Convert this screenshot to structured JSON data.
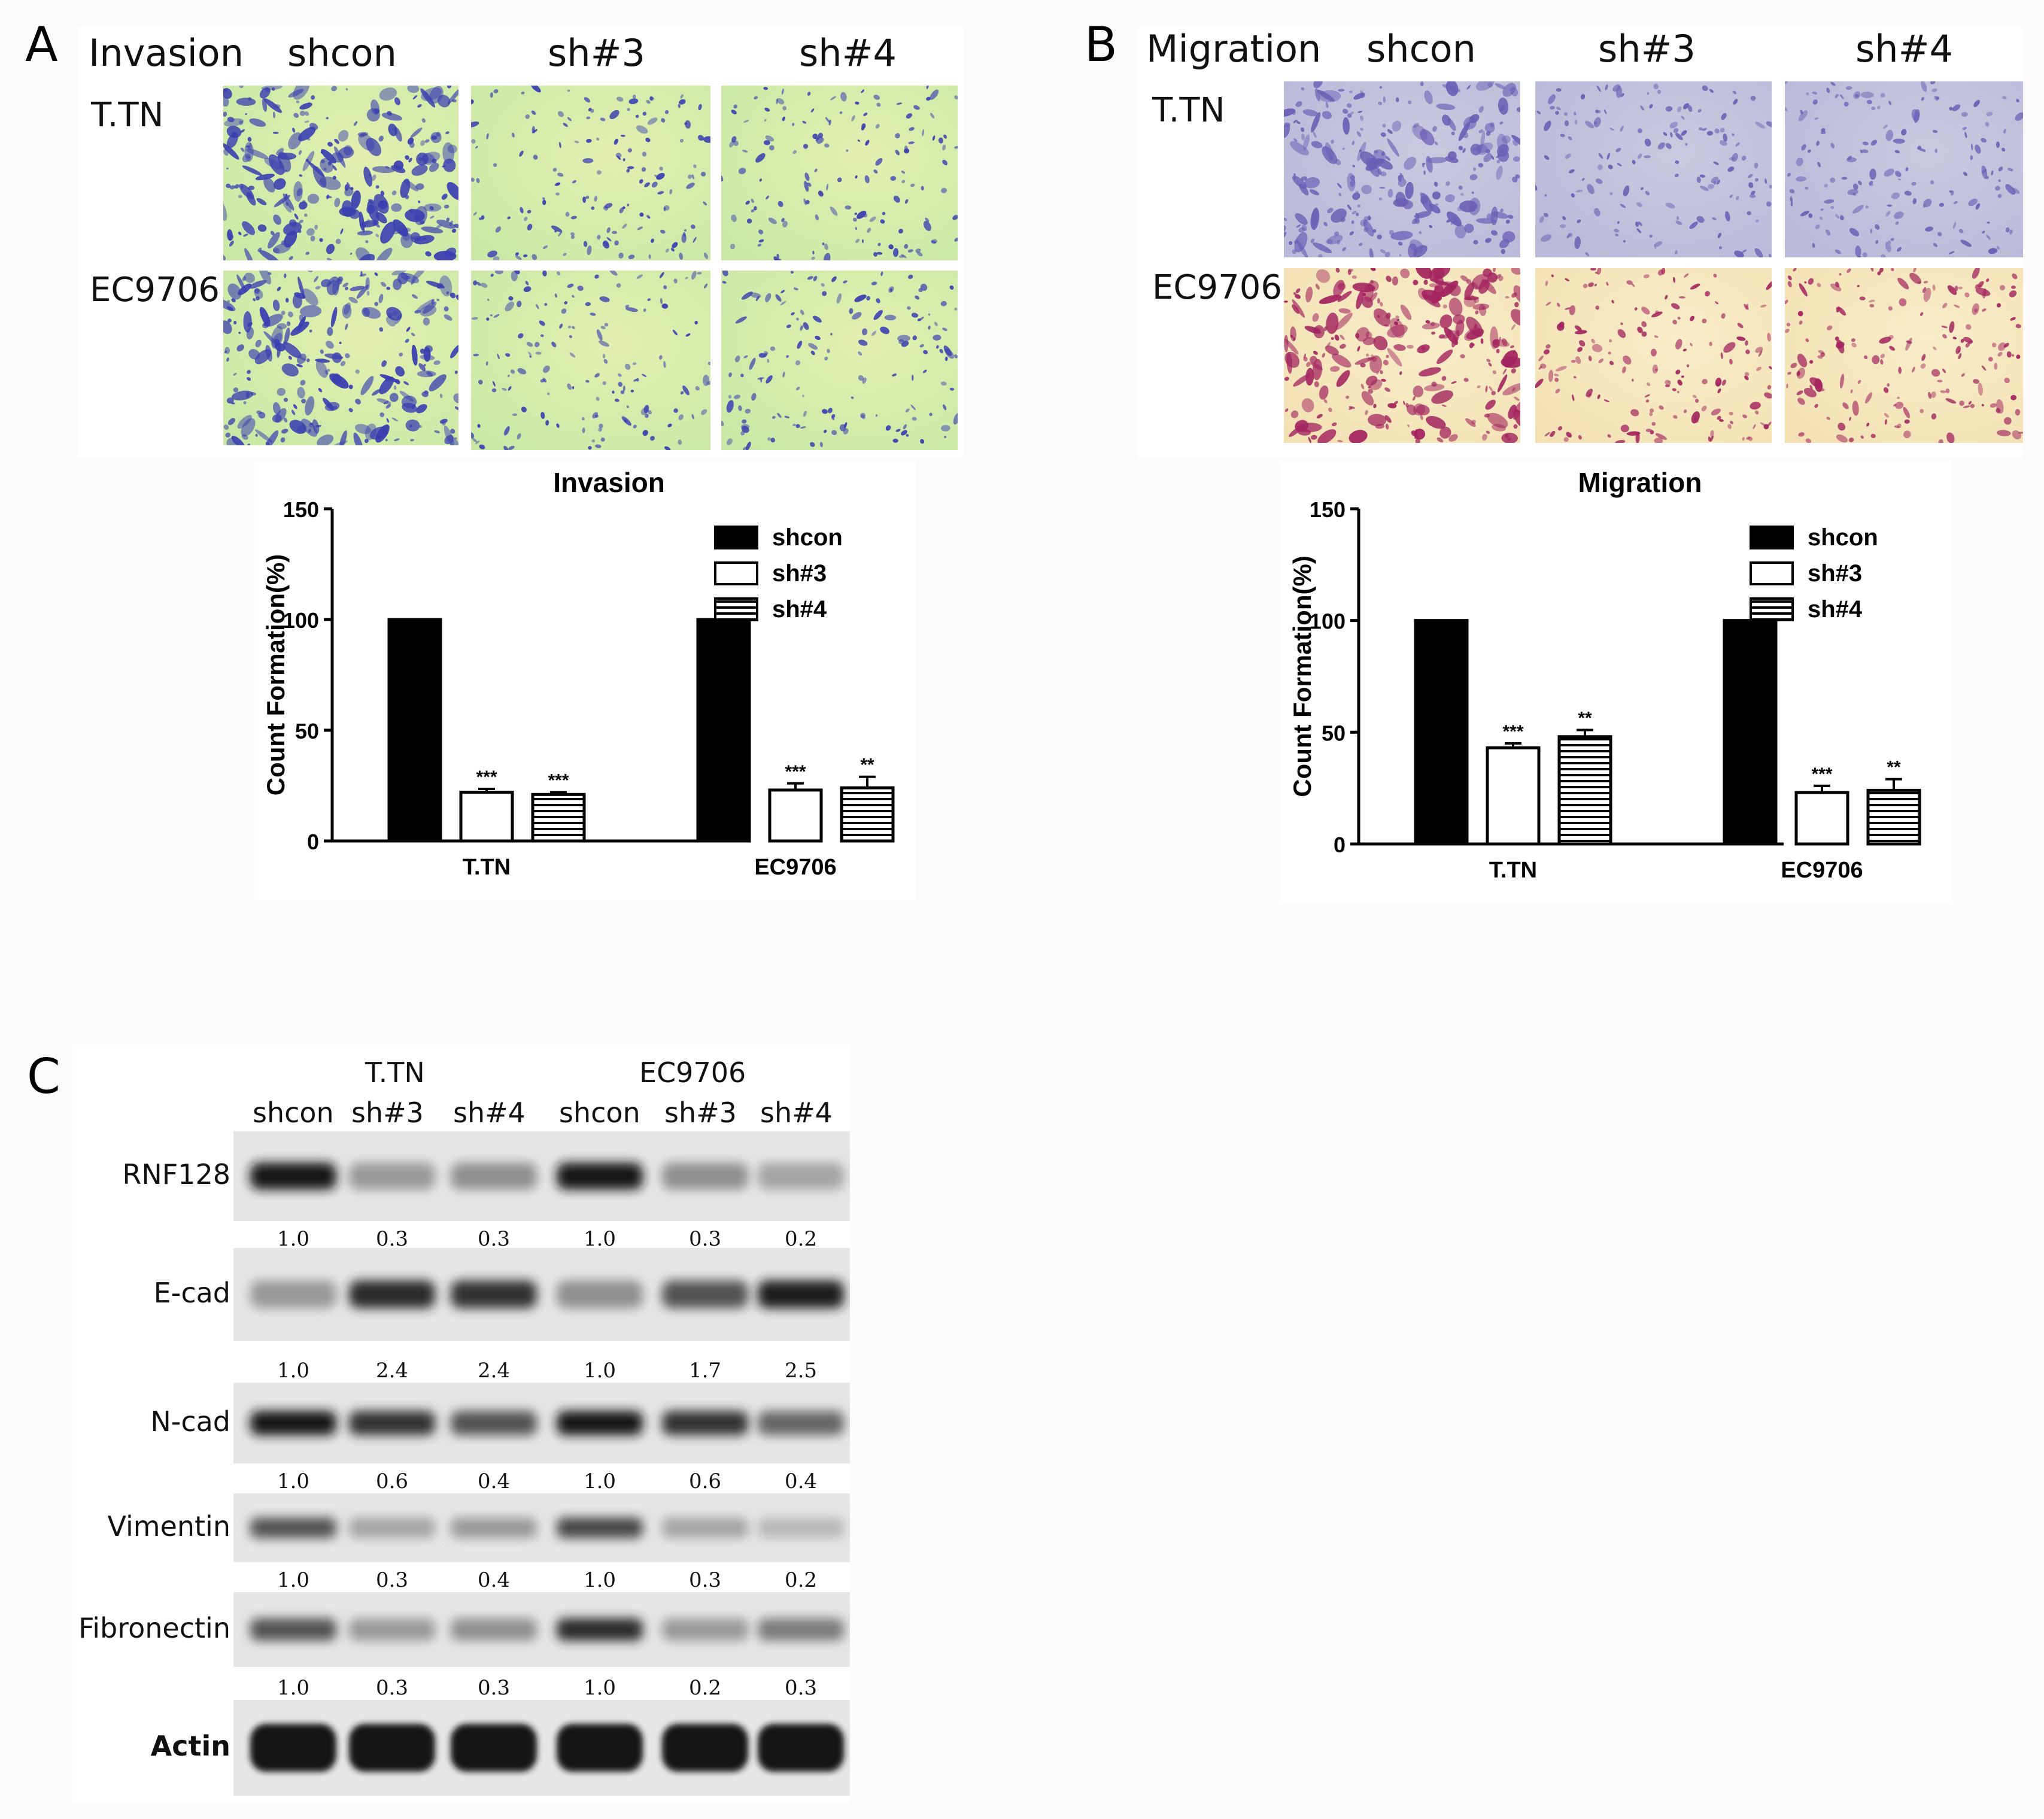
{
  "panels": {
    "A": {
      "letter": "A",
      "title": "Invasion",
      "columns": [
        "shcon",
        "sh#3",
        "sh#4"
      ],
      "rows": [
        "T.TN",
        "EC9706"
      ]
    },
    "B": {
      "letter": "B",
      "title": "Migration",
      "columns": [
        "shcon",
        "sh#3",
        "sh#4"
      ],
      "rows": [
        "T.TN",
        "EC9706"
      ]
    },
    "C": {
      "letter": "C",
      "groups": [
        "T.TN",
        "EC9706"
      ],
      "lanes": [
        "shcon",
        "sh#3",
        "sh#4",
        "shcon",
        "sh#3",
        "sh#4"
      ],
      "blots": [
        {
          "name": "RNF128",
          "values": [
            "1.0",
            "0.3",
            "0.3",
            "1.0",
            "0.3",
            "0.2"
          ]
        },
        {
          "name": "E-cad",
          "values": [
            "1.0",
            "2.4",
            "2.4",
            "1.0",
            "1.7",
            "2.5"
          ]
        },
        {
          "name": "N-cad",
          "values": [
            "1.0",
            "0.6",
            "0.4",
            "1.0",
            "0.6",
            "0.4"
          ]
        },
        {
          "name": "Vimentin",
          "values": [
            "1.0",
            "0.3",
            "0.4",
            "1.0",
            "0.3",
            "0.2"
          ]
        },
        {
          "name": "Fibronectin",
          "values": [
            "1.0",
            "0.3",
            "0.3",
            "1.0",
            "0.2",
            "0.3"
          ]
        },
        {
          "name": "Actin",
          "values": []
        }
      ]
    }
  },
  "colors": {
    "invasion_bg": "#c9e8a6",
    "invasion_cell": "#3a3fb0",
    "migration_ttn_bg": "#b9b9d8",
    "migration_ttn_cell": "#6a5fb5",
    "migration_ec_bg": "#f3e1b4",
    "migration_ec_cell": "#a3245e",
    "bar_fill": "#000000"
  },
  "chart_data": [
    {
      "type": "bar",
      "title": "Invasion",
      "xlabel": "",
      "ylabel": "Count Formation(%)",
      "ylim": [
        0,
        150
      ],
      "yticks": [
        0,
        50,
        100,
        150
      ],
      "categories": [
        "T.TN",
        "EC9706"
      ],
      "series": [
        {
          "name": "shcon",
          "values": [
            100,
            100
          ],
          "errors": [
            0,
            0
          ],
          "sig": [
            "",
            ""
          ],
          "fill": "solid"
        },
        {
          "name": "sh#3",
          "values": [
            22,
            23
          ],
          "errors": [
            1.5,
            3
          ],
          "sig": [
            "***",
            "***"
          ],
          "fill": "open"
        },
        {
          "name": "sh#4",
          "values": [
            21,
            24
          ],
          "errors": [
            1,
            5
          ],
          "sig": [
            "***",
            "**"
          ],
          "fill": "hatch"
        }
      ],
      "legend": "top-right"
    },
    {
      "type": "bar",
      "title": "Migration",
      "xlabel": "",
      "ylabel": "Count Formation(%)",
      "ylim": [
        0,
        150
      ],
      "yticks": [
        0,
        50,
        100,
        150
      ],
      "categories": [
        "T.TN",
        "EC9706"
      ],
      "series": [
        {
          "name": "shcon",
          "values": [
            100,
            100
          ],
          "errors": [
            0,
            0
          ],
          "sig": [
            "",
            ""
          ],
          "fill": "solid"
        },
        {
          "name": "sh#3",
          "values": [
            43,
            23
          ],
          "errors": [
            2,
            3
          ],
          "sig": [
            "***",
            "***"
          ],
          "fill": "open"
        },
        {
          "name": "sh#4",
          "values": [
            48,
            24
          ],
          "errors": [
            3,
            5
          ],
          "sig": [
            "**",
            "**"
          ],
          "fill": "hatch"
        }
      ],
      "legend": "top-right"
    }
  ]
}
